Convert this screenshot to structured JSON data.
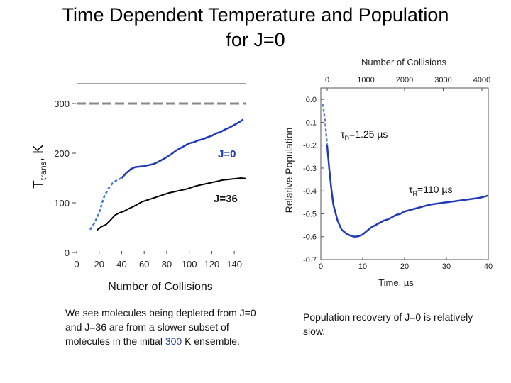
{
  "title": {
    "line1": "Time Dependent Temperature and Population",
    "line2": "for J=0"
  },
  "captions": {
    "left_prefix": "We see molecules being depleted from J=0 and J=36 are from a slower subset of molecules in the initial ",
    "left_highlight": "300",
    "left_suffix": " K ensemble.",
    "right": "Population recovery of J=0 is relatively slow."
  },
  "chart_data": [
    {
      "type": "line",
      "xlabel": "Number of Collisions",
      "ylabel_main": "T",
      "ylabel_sub": "trans",
      "ylabel_unit": ", K",
      "xlim": [
        0,
        150
      ],
      "ylim": [
        0,
        340
      ],
      "x_ticks": [
        "0",
        "20",
        "40",
        "60",
        "80",
        "100",
        "120",
        "140"
      ],
      "y_ticks": [
        "0",
        "100",
        "200",
        "300"
      ],
      "reference_value": 300,
      "series": [
        {
          "name": "J=0",
          "color": "#1f3ab8",
          "x": [
            12,
            16,
            20,
            24,
            28,
            32,
            36,
            40,
            44,
            48,
            52,
            56,
            60,
            64,
            68,
            72,
            76,
            80,
            84,
            88,
            92,
            96,
            100,
            104,
            108,
            112,
            116,
            120,
            124,
            128,
            132,
            136,
            140,
            144,
            148
          ],
          "y": [
            46,
            60,
            80,
            110,
            128,
            140,
            146,
            150,
            160,
            168,
            172,
            173,
            174,
            176,
            178,
            182,
            187,
            192,
            198,
            205,
            210,
            215,
            220,
            222,
            226,
            228,
            232,
            235,
            240,
            243,
            248,
            252,
            257,
            262,
            268
          ]
        },
        {
          "name": "J=36",
          "color": "#000000",
          "x": [
            18,
            22,
            26,
            30,
            34,
            38,
            42,
            46,
            50,
            54,
            58,
            62,
            66,
            70,
            74,
            78,
            82,
            86,
            90,
            94,
            98,
            102,
            106,
            110,
            114,
            118,
            122,
            126,
            130,
            134,
            138,
            142,
            146,
            150
          ],
          "y": [
            45,
            52,
            56,
            65,
            75,
            80,
            83,
            88,
            92,
            97,
            102,
            105,
            108,
            111,
            114,
            117,
            120,
            122,
            124,
            126,
            128,
            131,
            134,
            136,
            138,
            140,
            142,
            144,
            146,
            147,
            148,
            149,
            150,
            149
          ]
        }
      ]
    },
    {
      "type": "line",
      "title": "Number of Collisions",
      "xlabel": "Time, µs",
      "ylabel": "Relative Population",
      "xlim": [
        0,
        40
      ],
      "ylim": [
        -0.7,
        0.05
      ],
      "x_ticks": [
        "0",
        "10",
        "20",
        "30",
        "40"
      ],
      "top_ticks": [
        "0",
        "1000",
        "2000",
        "3000",
        "4000"
      ],
      "y_ticks": [
        "0.0",
        "-0.1",
        "-0.2",
        "-0.3",
        "-0.4",
        "-0.5",
        "-0.6",
        "-0.7"
      ],
      "annotations": [
        {
          "prefix": "τ",
          "sub": "D",
          "suffix": "=1.25 µs"
        },
        {
          "prefix": "τ",
          "sub": "R",
          "suffix": "=110 µs"
        }
      ],
      "series": [
        {
          "name": "J=0",
          "color": "#1f3ab8",
          "x": [
            0.5,
            1,
            1.5,
            2,
            2.5,
            3,
            4,
            5,
            6,
            7,
            8,
            9,
            10,
            11,
            12,
            13,
            14,
            15,
            16,
            17,
            18,
            19,
            20,
            22,
            24,
            26,
            28,
            30,
            32,
            34,
            36,
            38,
            40
          ],
          "y": [
            -0.02,
            -0.09,
            -0.2,
            -0.3,
            -0.39,
            -0.46,
            -0.53,
            -0.57,
            -0.585,
            -0.595,
            -0.6,
            -0.598,
            -0.59,
            -0.575,
            -0.56,
            -0.55,
            -0.54,
            -0.53,
            -0.525,
            -0.515,
            -0.505,
            -0.5,
            -0.49,
            -0.48,
            -0.47,
            -0.46,
            -0.455,
            -0.45,
            -0.445,
            -0.44,
            -0.435,
            -0.43,
            -0.42
          ]
        }
      ]
    }
  ]
}
